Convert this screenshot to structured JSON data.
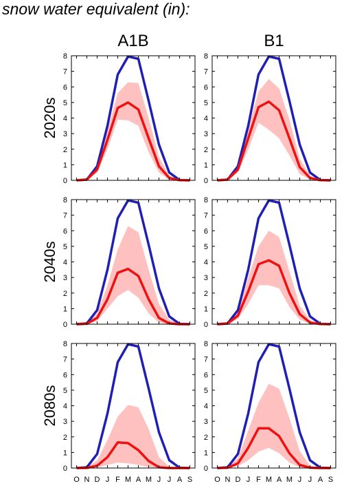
{
  "title": "snow water equivalent (in):",
  "chart_data": {
    "type": "area",
    "title": "snow water equivalent (in):",
    "xlabel": "",
    "ylabel": "",
    "ylim": [
      0,
      8
    ],
    "yticks": [
      0,
      1,
      2,
      3,
      4,
      5,
      6,
      7,
      8
    ],
    "categories": [
      "O",
      "N",
      "D",
      "J",
      "F",
      "M",
      "A",
      "M",
      "J",
      "J",
      "A",
      "S"
    ],
    "grid": false,
    "colors": {
      "historical": "#1f1fb4",
      "projected": "#ee1111",
      "range_fill": "#ffc0c0"
    },
    "columns": [
      "A1B",
      "B1"
    ],
    "rows": [
      "2020s",
      "2040s",
      "2080s"
    ],
    "historical": [
      0,
      0.05,
      0.9,
      3.5,
      6.8,
      7.95,
      7.8,
      5.1,
      2.3,
      0.5,
      0.02,
      0
    ],
    "panels": [
      {
        "scenario": "A1B",
        "period": "2020s",
        "projected": [
          0,
          0.05,
          0.7,
          2.6,
          4.65,
          5.0,
          4.55,
          2.7,
          0.9,
          0.15,
          0.01,
          0
        ],
        "range_low": [
          0,
          0.02,
          0.5,
          2.0,
          3.9,
          3.85,
          3.5,
          1.8,
          0.5,
          0.05,
          0,
          0
        ],
        "range_high": [
          0,
          0.08,
          0.9,
          3.2,
          5.6,
          6.3,
          6.25,
          4.0,
          1.5,
          0.3,
          0.02,
          0
        ]
      },
      {
        "scenario": "B1",
        "period": "2020s",
        "projected": [
          0,
          0.05,
          0.7,
          2.7,
          4.7,
          5.05,
          4.5,
          2.7,
          0.85,
          0.15,
          0.01,
          0
        ],
        "range_low": [
          0,
          0.02,
          0.5,
          2.0,
          3.7,
          3.25,
          2.7,
          1.6,
          0.4,
          0.05,
          0,
          0
        ],
        "range_high": [
          0,
          0.08,
          0.9,
          3.3,
          5.7,
          6.5,
          5.9,
          3.9,
          1.4,
          0.3,
          0.02,
          0
        ]
      },
      {
        "scenario": "A1B",
        "period": "2040s",
        "projected": [
          0,
          0.03,
          0.4,
          1.6,
          3.3,
          3.55,
          3.1,
          1.6,
          0.4,
          0.05,
          0,
          0
        ],
        "range_low": [
          0,
          0.01,
          0.2,
          1.0,
          1.8,
          2.2,
          1.7,
          0.7,
          0.1,
          0,
          0,
          0
        ],
        "range_high": [
          0,
          0.06,
          0.7,
          2.5,
          4.8,
          6.3,
          5.9,
          3.5,
          1.3,
          0.3,
          0.02,
          0
        ]
      },
      {
        "scenario": "B1",
        "period": "2040s",
        "projected": [
          0,
          0.04,
          0.55,
          2.1,
          3.85,
          4.1,
          3.75,
          2.0,
          0.65,
          0.1,
          0.01,
          0
        ],
        "range_low": [
          0,
          0.02,
          0.35,
          1.3,
          2.5,
          2.5,
          2.3,
          1.1,
          0.3,
          0.02,
          0,
          0
        ],
        "range_high": [
          0,
          0.07,
          0.8,
          3.0,
          5.0,
          6.0,
          5.6,
          3.4,
          1.2,
          0.25,
          0.02,
          0
        ]
      },
      {
        "scenario": "A1B",
        "period": "2080s",
        "projected": [
          0,
          0.01,
          0.15,
          0.7,
          1.65,
          1.6,
          1.15,
          0.45,
          0.05,
          0,
          0,
          0
        ],
        "range_low": [
          0,
          0,
          0.05,
          0.2,
          0.35,
          0.3,
          0.2,
          0.05,
          0,
          0,
          0,
          0
        ],
        "range_high": [
          0,
          0.04,
          0.5,
          1.8,
          3.3,
          4.05,
          3.9,
          2.5,
          0.7,
          0.1,
          0,
          0
        ]
      },
      {
        "scenario": "B1",
        "period": "2080s",
        "projected": [
          0,
          0.02,
          0.3,
          1.3,
          2.55,
          2.55,
          2.05,
          0.95,
          0.2,
          0.02,
          0,
          0
        ],
        "range_low": [
          0,
          0.01,
          0.12,
          0.5,
          1.05,
          1.3,
          0.95,
          0.35,
          0.05,
          0,
          0,
          0
        ],
        "range_high": [
          0,
          0.05,
          0.65,
          2.4,
          4.2,
          5.4,
          5.1,
          3.2,
          1.1,
          0.15,
          0.01,
          0
        ]
      }
    ]
  }
}
